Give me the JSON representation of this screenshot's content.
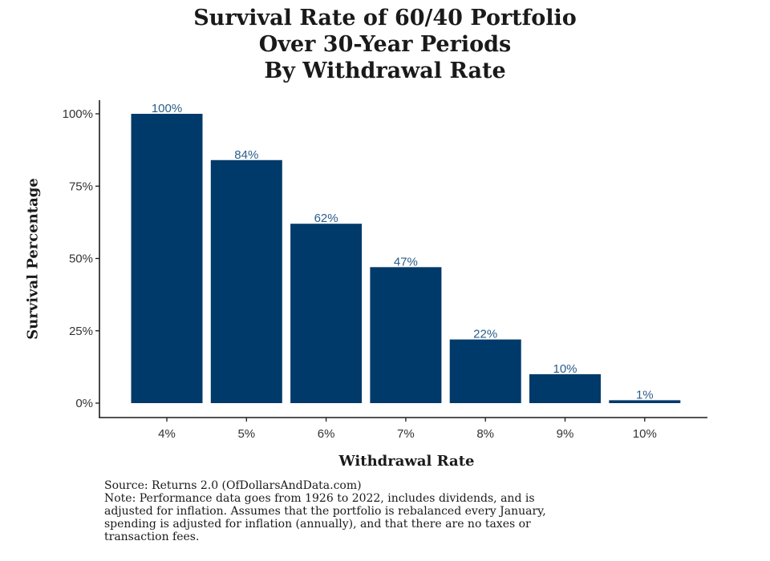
{
  "chart_data": {
    "type": "bar",
    "title_lines": [
      "Survival Rate of 60/40 Portfolio",
      "Over 30-Year Periods",
      "By Withdrawal Rate"
    ],
    "categories": [
      "4%",
      "5%",
      "6%",
      "7%",
      "8%",
      "9%",
      "10%"
    ],
    "values": [
      100,
      84,
      62,
      47,
      22,
      10,
      1
    ],
    "value_labels": [
      "100%",
      "84%",
      "62%",
      "47%",
      "22%",
      "10%",
      "1%"
    ],
    "xlabel": "Withdrawal Rate",
    "ylabel": "Survival Percentage",
    "ylim": [
      0,
      100
    ],
    "yticks": [
      0,
      25,
      50,
      75,
      100
    ],
    "ytick_labels": [
      "0%",
      "25%",
      "50%",
      "75%",
      "100%"
    ],
    "grid": false,
    "bar_color": "#003a6a",
    "label_color": "#2a5d8a"
  },
  "notes": {
    "source": "Source:  Returns 2.0 (OfDollarsAndData.com)",
    "note_lines": [
      "Note: Performance data goes from 1926 to 2022, includes dividends, and is",
      "adjusted for inflation. Assumes that the portfolio is rebalanced every January,",
      "spending is adjusted for inflation (annually), and that there are no taxes or",
      "transaction fees."
    ]
  }
}
